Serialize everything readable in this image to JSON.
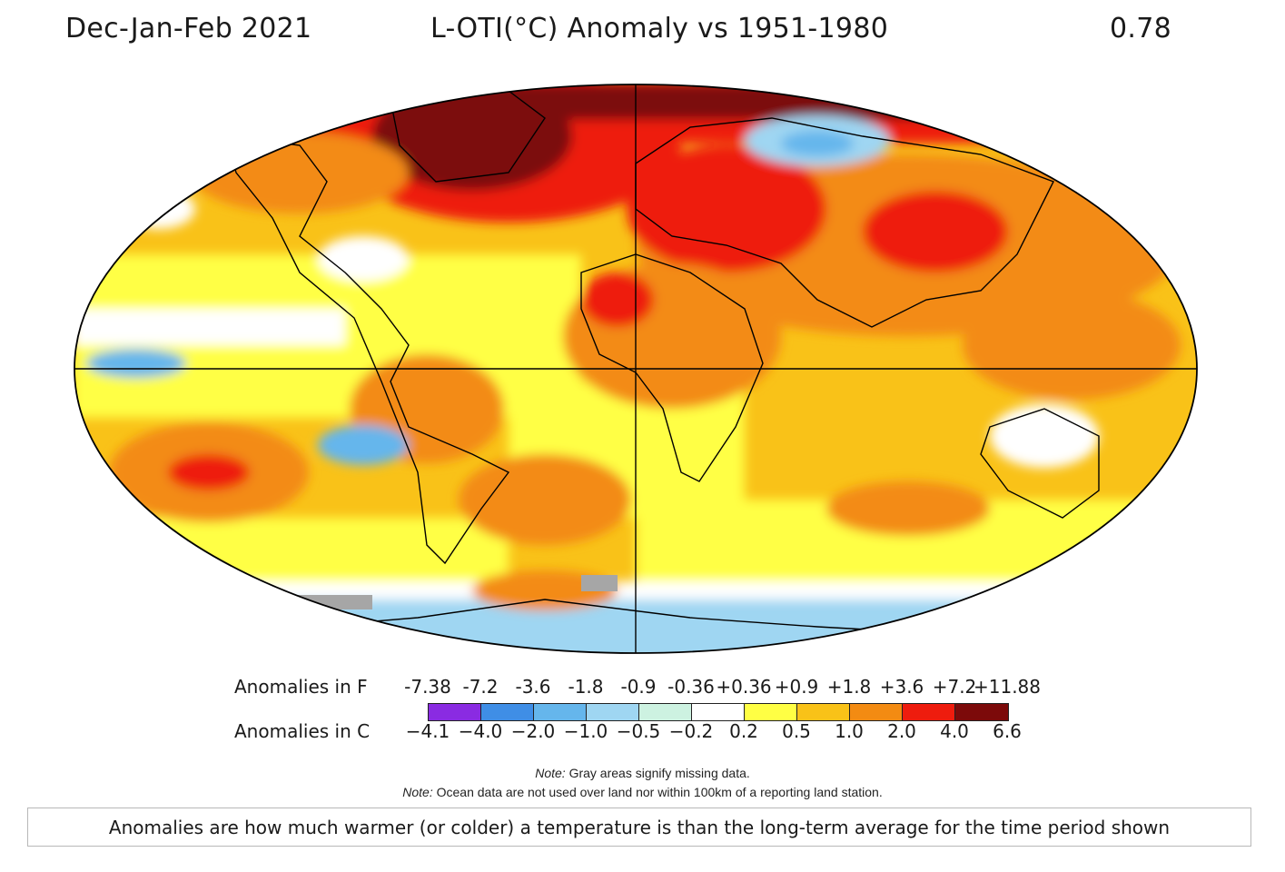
{
  "header": {
    "season": "Dec-Jan-Feb 2021",
    "title": "L-OTI(°C) Anomaly vs 1951-1980",
    "global_mean": "0.78"
  },
  "legend": {
    "label_f": "Anomalies in F",
    "label_c": "Anomalies in C",
    "ticks_f": [
      "-7.38",
      "-7.2",
      "-3.6",
      "-1.8",
      "-0.9",
      "-0.36",
      "+0.36",
      "+0.9",
      "+1.8",
      "+3.6",
      "+7.2",
      "+11.88"
    ],
    "ticks_c": [
      "−4.1",
      "−4.0",
      "−2.0",
      "−1.0",
      "−0.5",
      "−0.2",
      "0.2",
      "0.5",
      "1.0",
      "2.0",
      "4.0",
      "6.6"
    ],
    "colors": [
      "#8a2be2",
      "#3f8ee6",
      "#65b6ec",
      "#9fd6f2",
      "#cdf2e1",
      "#ffffff",
      "#ffff44",
      "#f9c218",
      "#f38b12",
      "#ee1c0e",
      "#7c0a0a"
    ]
  },
  "map_colors": {
    "missing": "#a6a6a6",
    "grid": "#000000"
  },
  "notes": {
    "note_label": "Note:",
    "note1_text": " Gray areas signify missing data.",
    "note2_text": " Ocean data are not used over land nor within 100km of a reporting land station."
  },
  "caption": "Anomalies are how much warmer (or colder) a temperature is than the long-term average for the time period shown"
}
